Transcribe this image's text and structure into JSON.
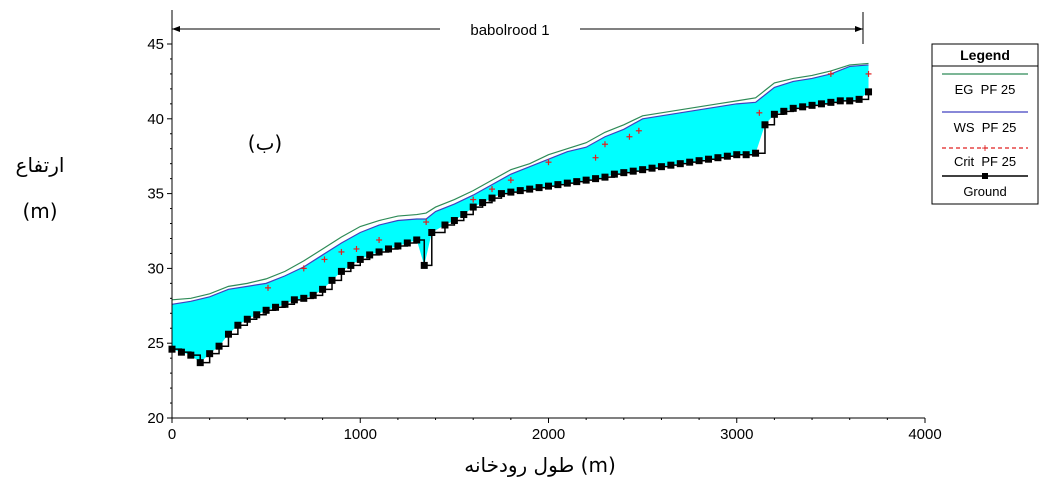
{
  "chart_data": {
    "type": "line",
    "reach_label": "babolrood 1",
    "panel_label": "(ب)",
    "xlabel": "طول رودخانه (m)",
    "ylabel_line1": "ارتفاع",
    "ylabel_line2": "(m)",
    "xlim": [
      0,
      4000
    ],
    "ylim": [
      20,
      45
    ],
    "x_ticks": [
      "0",
      "1000",
      "2000",
      "3000",
      "4000"
    ],
    "y_ticks": [
      "20",
      "25",
      "30",
      "35",
      "40",
      "45"
    ],
    "legend": {
      "title": "Legend",
      "entries": [
        "EG  PF 25",
        "WS  PF 25",
        "Crit  PF 25",
        "Ground"
      ]
    },
    "colors": {
      "eg": "#2e8b57",
      "ws": "#4040c0",
      "crit": "#e02020",
      "ground": "#000000",
      "water": "#00ffff"
    },
    "series": [
      {
        "name": "EG  PF 25",
        "x": [
          0,
          100,
          200,
          300,
          400,
          500,
          600,
          700,
          800,
          900,
          1000,
          1100,
          1200,
          1300,
          1350,
          1400,
          1500,
          1600,
          1700,
          1800,
          1900,
          2000,
          2100,
          2200,
          2300,
          2400,
          2500,
          2600,
          2700,
          2800,
          2900,
          3000,
          3100,
          3150,
          3200,
          3300,
          3400,
          3500,
          3600,
          3700
        ],
        "values": [
          27.9,
          28.0,
          28.3,
          28.8,
          29.0,
          29.3,
          29.8,
          30.5,
          31.3,
          32.1,
          32.8,
          33.2,
          33.5,
          33.6,
          33.7,
          34.1,
          34.6,
          35.2,
          35.9,
          36.6,
          37.0,
          37.6,
          38.0,
          38.4,
          39.1,
          39.6,
          40.2,
          40.4,
          40.6,
          40.8,
          41.0,
          41.2,
          41.4,
          41.9,
          42.4,
          42.7,
          42.9,
          43.2,
          43.6,
          43.7
        ]
      },
      {
        "name": "WS  PF 25",
        "x": [
          0,
          100,
          200,
          300,
          400,
          500,
          600,
          700,
          800,
          900,
          1000,
          1100,
          1200,
          1300,
          1350,
          1400,
          1500,
          1600,
          1700,
          1800,
          1900,
          2000,
          2100,
          2200,
          2300,
          2400,
          2500,
          2600,
          2700,
          2800,
          2900,
          3000,
          3100,
          3150,
          3200,
          3300,
          3400,
          3500,
          3600,
          3700
        ],
        "values": [
          27.6,
          27.8,
          28.1,
          28.6,
          28.8,
          29.0,
          29.5,
          30.1,
          30.9,
          31.7,
          32.4,
          32.9,
          33.2,
          33.3,
          33.3,
          33.8,
          34.3,
          34.9,
          35.6,
          36.3,
          36.8,
          37.3,
          37.8,
          38.1,
          38.8,
          39.3,
          40.0,
          40.2,
          40.4,
          40.6,
          40.8,
          41.0,
          41.1,
          41.6,
          42.1,
          42.5,
          42.7,
          43.0,
          43.5,
          43.6
        ]
      },
      {
        "name": "Crit  PF 25",
        "x": [
          510,
          700,
          810,
          900,
          980,
          1100,
          1350,
          1600,
          1700,
          1800,
          2000,
          2250,
          2300,
          2430,
          2480,
          3120,
          3500,
          3700
        ],
        "values": [
          28.7,
          30.0,
          30.6,
          31.1,
          31.3,
          31.9,
          33.1,
          34.6,
          35.3,
          35.9,
          37.1,
          37.4,
          38.3,
          38.8,
          39.2,
          40.4,
          43.0,
          43.0
        ]
      },
      {
        "name": "Ground",
        "x": [
          0,
          50,
          100,
          150,
          200,
          250,
          300,
          350,
          400,
          450,
          500,
          550,
          600,
          650,
          700,
          750,
          800,
          850,
          900,
          950,
          1000,
          1050,
          1100,
          1150,
          1200,
          1250,
          1300,
          1340,
          1380,
          1450,
          1500,
          1550,
          1600,
          1650,
          1700,
          1750,
          1800,
          1850,
          1900,
          1950,
          2000,
          2050,
          2100,
          2150,
          2200,
          2250,
          2300,
          2350,
          2400,
          2450,
          2500,
          2550,
          2600,
          2650,
          2700,
          2750,
          2800,
          2850,
          2900,
          2950,
          3000,
          3050,
          3100,
          3150,
          3200,
          3250,
          3300,
          3350,
          3400,
          3450,
          3500,
          3550,
          3600,
          3650,
          3700
        ],
        "values": [
          24.6,
          24.4,
          24.2,
          23.7,
          24.3,
          24.8,
          25.6,
          26.2,
          26.6,
          26.9,
          27.2,
          27.4,
          27.6,
          27.9,
          28.0,
          28.2,
          28.6,
          29.2,
          29.8,
          30.2,
          30.6,
          30.9,
          31.1,
          31.3,
          31.5,
          31.7,
          31.9,
          30.2,
          32.4,
          32.9,
          33.2,
          33.6,
          34.1,
          34.4,
          34.7,
          35.0,
          35.1,
          35.2,
          35.3,
          35.4,
          35.5,
          35.6,
          35.7,
          35.8,
          35.9,
          36.0,
          36.1,
          36.3,
          36.4,
          36.5,
          36.6,
          36.7,
          36.8,
          36.9,
          37.0,
          37.1,
          37.2,
          37.3,
          37.4,
          37.5,
          37.6,
          37.6,
          37.7,
          39.6,
          40.3,
          40.5,
          40.7,
          40.8,
          40.9,
          41.0,
          41.1,
          41.2,
          41.2,
          41.3,
          41.8
        ]
      }
    ]
  }
}
